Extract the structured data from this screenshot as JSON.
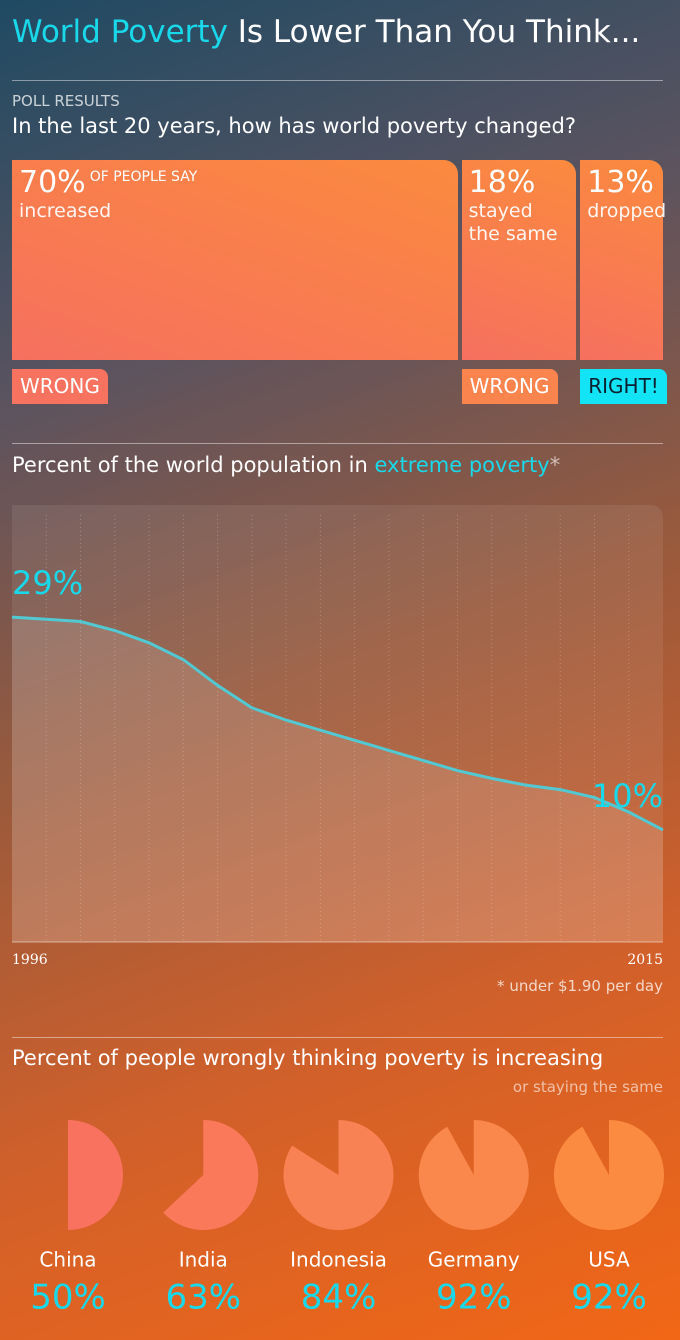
{
  "header": {
    "title_highlight": "World Poverty",
    "title_rest": "Is Lower Than You Think..."
  },
  "chart_data": [
    {
      "type": "bar",
      "kicker": "POLL RESULTS",
      "title": "In the last 20 years, how has world poverty changed?",
      "lead_note": "OF PEOPLE SAY",
      "categories": [
        "increased",
        "stayed the same",
        "dropped"
      ],
      "values": [
        70,
        18,
        13
      ],
      "value_labels": [
        "70%",
        "18%",
        "13%"
      ],
      "verdicts": [
        "WRONG",
        "WRONG",
        "RIGHT!"
      ],
      "verdict_colors": [
        "#f7725f",
        "#f9844e",
        "#12e4f6"
      ]
    },
    {
      "type": "line",
      "title_parts": [
        "Percent of the world population in ",
        "extreme poverty",
        "*"
      ],
      "categories": [
        "1996",
        null,
        null,
        null,
        null,
        null,
        null,
        null,
        null,
        null,
        null,
        null,
        null,
        null,
        null,
        null,
        null,
        null,
        null,
        "2015"
      ],
      "values": [
        29,
        28.8,
        28.6,
        27.8,
        26.7,
        25.2,
        22.9,
        20.9,
        19.8,
        18.9,
        18.0,
        17.1,
        16.2,
        15.3,
        14.6,
        14.0,
        13.6,
        12.9,
        11.6,
        10
      ],
      "value_labels": [
        "29%",
        null,
        null,
        null,
        null,
        null,
        null,
        null,
        null,
        null,
        null,
        null,
        null,
        null,
        null,
        null,
        null,
        null,
        null,
        "10%"
      ],
      "ylim": [
        0,
        39
      ],
      "grid": true,
      "color": "#52c9d2",
      "footnote": "* under $1.90 per day"
    },
    {
      "type": "pie",
      "title": "Percent of people wrongly thinking poverty is increasing",
      "subtitle": "or staying the same",
      "categories": [
        "China",
        "India",
        "Indonesia",
        "Germany",
        "USA"
      ],
      "values": [
        50,
        63,
        84,
        92,
        92
      ],
      "value_labels": [
        "50%",
        "63%",
        "84%",
        "92%",
        "92%"
      ],
      "colors": [
        "#f8725f",
        "#f9795a",
        "#f98255",
        "#fa874b",
        "#fb8b40"
      ]
    }
  ]
}
